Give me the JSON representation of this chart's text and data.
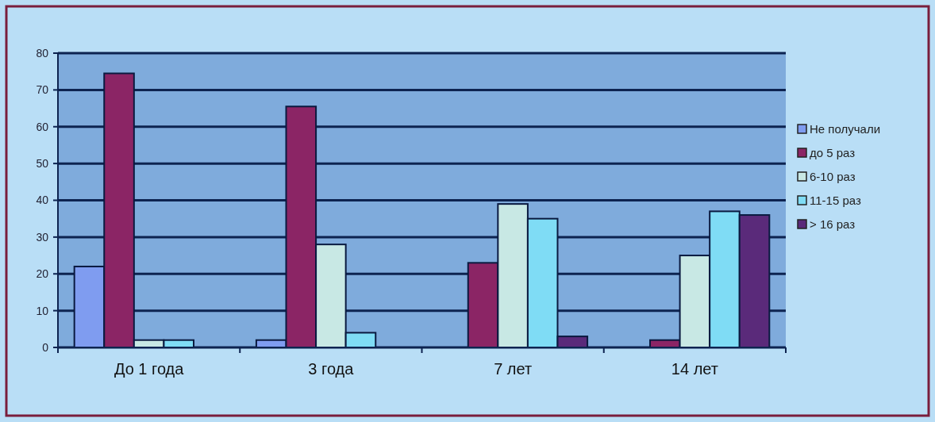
{
  "chart_data": {
    "type": "bar",
    "categories": [
      "До 1 года",
      "3 года",
      "7 лет",
      "14 лет"
    ],
    "series": [
      {
        "name": "Не получали",
        "color": "#7f9cf0",
        "values": [
          22,
          2,
          0,
          0
        ]
      },
      {
        "name": "до 5 раз",
        "color": "#8b2565",
        "values": [
          74.5,
          65.5,
          23,
          2
        ]
      },
      {
        "name": "6-10 раз",
        "color": "#c8e8e4",
        "values": [
          2,
          28,
          39,
          25
        ]
      },
      {
        "name": "11-15 раз",
        "color": "#7fdcf5",
        "values": [
          2,
          4,
          35,
          37
        ]
      },
      {
        "name": "> 16 раз",
        "color": "#5a2a7a",
        "values": [
          0,
          0,
          3,
          36
        ]
      }
    ],
    "ylim": [
      0,
      80
    ],
    "yticks": [
      0,
      10,
      20,
      30,
      40,
      50,
      60,
      70,
      80
    ],
    "grid": "y",
    "legend": "right"
  }
}
